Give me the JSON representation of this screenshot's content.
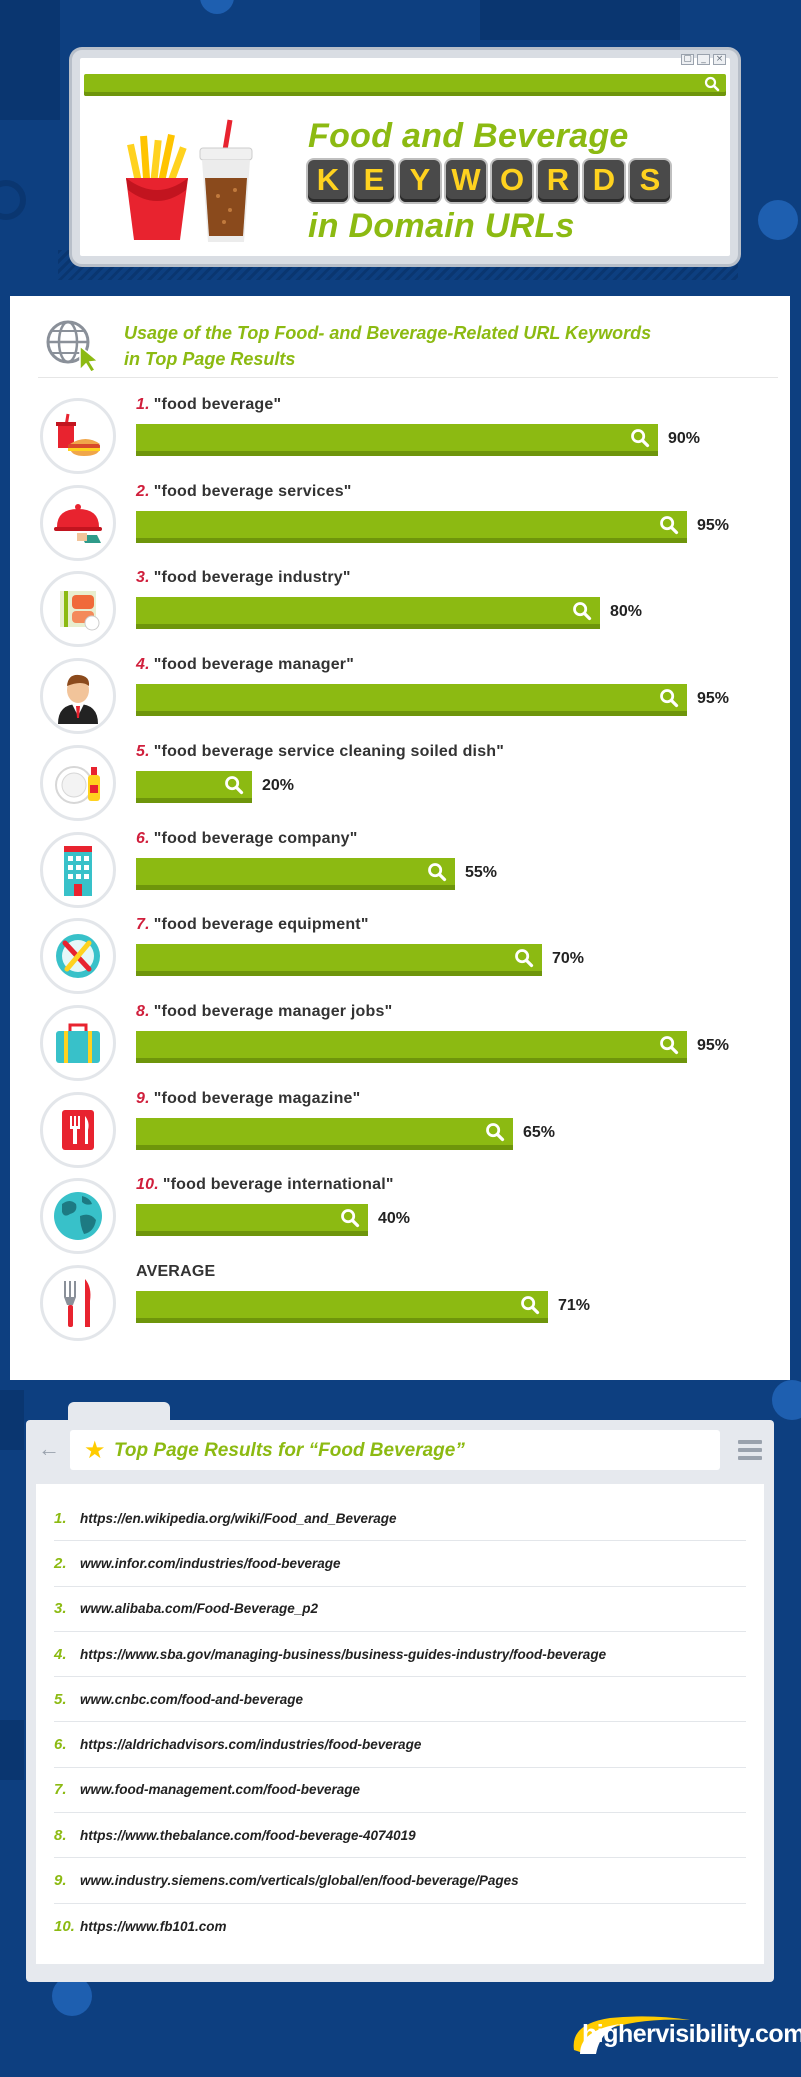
{
  "header": {
    "line1": "Food and Beverage",
    "tiles": [
      "K",
      "E",
      "Y",
      "W",
      "O",
      "R",
      "D",
      "S"
    ],
    "line3": "in Domain URLs",
    "icon": "fries-and-soda-icon"
  },
  "chart_data": {
    "type": "bar",
    "title": "Usage of the Top Food- and Beverage-Related URL Keywords in Top Page Results",
    "title_lines": [
      "Usage of the Top Food- and Beverage-Related URL Keywords",
      "in Top Page Results"
    ],
    "orientation": "horizontal",
    "unit": "%",
    "xlim": [
      0,
      100
    ],
    "rows": [
      {
        "rank": "1.",
        "label": "\"food beverage\"",
        "value": 90,
        "value_label": "90%",
        "icon": "fast-food-icon"
      },
      {
        "rank": "2.",
        "label": "\"food beverage services\"",
        "value": 95,
        "value_label": "95%",
        "icon": "serving-cloche-icon"
      },
      {
        "rank": "3.",
        "label": "\"food beverage industry\"",
        "value": 80,
        "value_label": "80%",
        "icon": "sushi-roll-icon"
      },
      {
        "rank": "4.",
        "label": "\"food beverage manager\"",
        "value": 95,
        "value_label": "95%",
        "icon": "manager-icon"
      },
      {
        "rank": "5.",
        "label": "\"food beverage service cleaning soiled dish\"",
        "value": 20,
        "value_label": "20%",
        "icon": "dish-soap-icon"
      },
      {
        "rank": "6.",
        "label": "\"food beverage company\"",
        "value": 55,
        "value_label": "55%",
        "icon": "office-building-icon"
      },
      {
        "rank": "7.",
        "label": "\"food beverage equipment\"",
        "value": 70,
        "value_label": "70%",
        "icon": "kitchen-utensils-icon"
      },
      {
        "rank": "8.",
        "label": "\"food beverage manager jobs\"",
        "value": 95,
        "value_label": "95%",
        "icon": "briefcase-icon"
      },
      {
        "rank": "9.",
        "label": "\"food beverage magazine\"",
        "value": 65,
        "value_label": "65%",
        "icon": "fork-knife-icon"
      },
      {
        "rank": "10.",
        "label": "\"food beverage international\"",
        "value": 40,
        "value_label": "40%",
        "icon": "globe-icon"
      },
      {
        "rank": "",
        "label": "AVERAGE",
        "value": 71,
        "value_label": "71%",
        "icon": "utensils-icon"
      }
    ],
    "colors": {
      "bar": "#8cba12",
      "bar_shadow": "#6e950b",
      "rank": "#d01f3c"
    }
  },
  "results": {
    "title": "Top Page Results for “Food Beverage”",
    "back_symbol": "←",
    "star_symbol": "★",
    "items": [
      {
        "num": "1.",
        "url": "https://en.wikipedia.org/wiki/Food_and_Beverage"
      },
      {
        "num": "2.",
        "url": "www.infor.com/industries/food-beverage"
      },
      {
        "num": "3.",
        "url": "www.alibaba.com/Food-Beverage_p2"
      },
      {
        "num": "4.",
        "url": "https://www.sba.gov/managing-business/business-guides-industry/food-beverage"
      },
      {
        "num": "5.",
        "url": "www.cnbc.com/food-and-beverage"
      },
      {
        "num": "6.",
        "url": "https://aldrichadvisors.com/industries/food-beverage"
      },
      {
        "num": "7.",
        "url": "www.food-management.com/food-beverage"
      },
      {
        "num": "8.",
        "url": "https://www.thebalance.com/food-beverage-4074019"
      },
      {
        "num": "9.",
        "url": "www.industry.siemens.com/verticals/global/en/food-beverage/Pages"
      },
      {
        "num": "10.",
        "url": "https://www.fb101.com"
      }
    ]
  },
  "footer": {
    "logo_name": "highervisibility",
    "logo_tld": ".com"
  }
}
